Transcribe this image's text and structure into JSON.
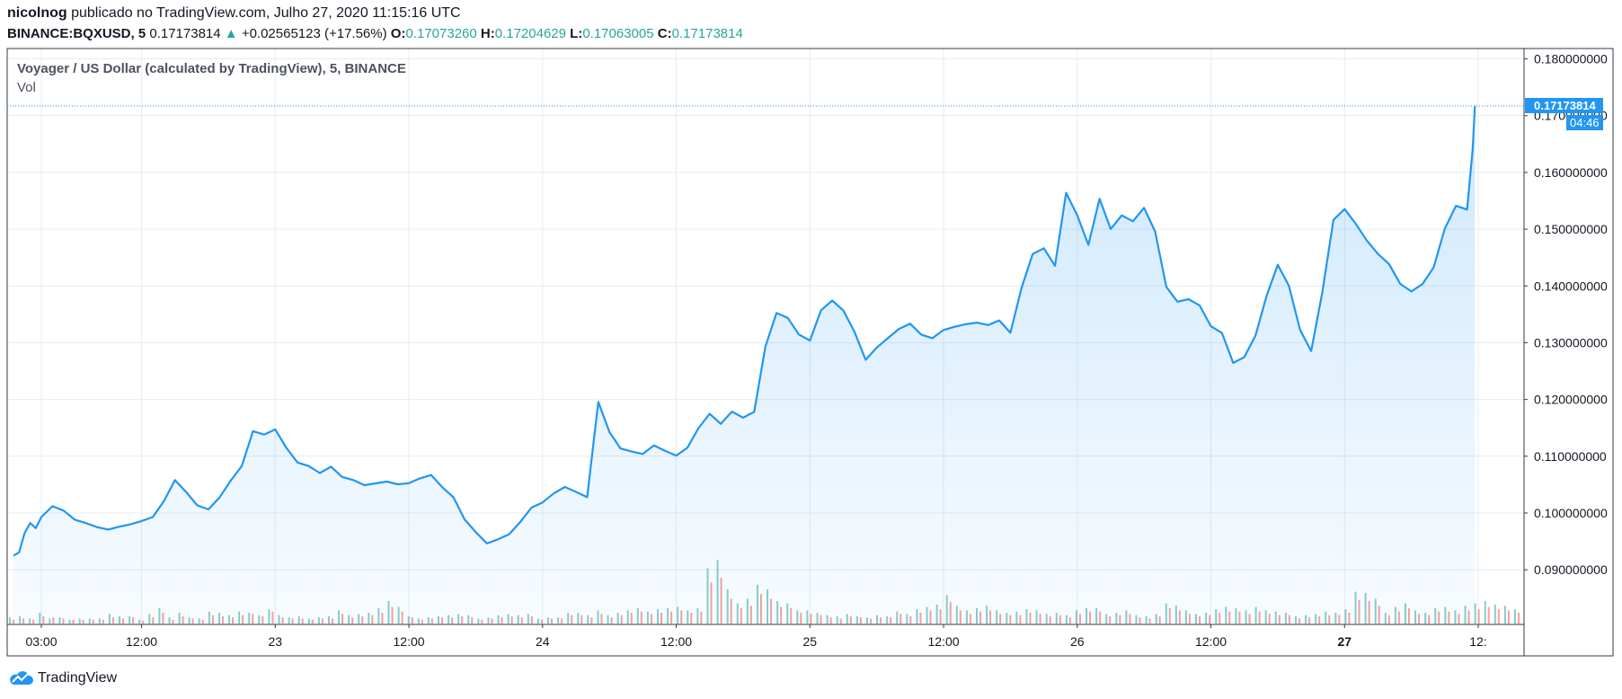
{
  "header": {
    "author": "nicolnog",
    "published_text": "publicado no TradingView.com, Julho 27, 2020 11:15:16 UTC",
    "symbol": "BINANCE:BQXUSD, 5",
    "last": "0.17173814",
    "arrow": "▲",
    "change": "+0.02565123 (+17.56%)",
    "o_label": "O:",
    "o_value": "0.17073260",
    "h_label": "H:",
    "h_value": "0.17204629",
    "l_label": "L:",
    "l_value": "0.17063005",
    "c_label": "C:",
    "c_value": "0.17173814"
  },
  "legend": {
    "title": "Voyager / US Dollar (calculated by TradingView), 5, BINANCE",
    "vol": "Vol"
  },
  "price_label": "0.17173814",
  "countdown": "04:46",
  "footer": {
    "brand": "TradingView"
  },
  "colors": {
    "line": "#2196f3",
    "up_vol": "#26a69a",
    "down_vol": "#ef5350",
    "accent": "#2196f3"
  },
  "chart_data": {
    "type": "area",
    "grid": true,
    "ylim": [
      0.0848,
      0.1808
    ],
    "y_ticks": [
      "0.090000000",
      "0.100000000",
      "0.110000000",
      "0.120000000",
      "0.130000000",
      "0.140000000",
      "0.150000000",
      "0.160000000",
      "0.170000000",
      "0.180000000"
    ],
    "y_tick_values": [
      0.09,
      0.1,
      0.11,
      0.12,
      0.13,
      0.14,
      0.15,
      0.16,
      0.17,
      0.18
    ],
    "x_ticks": [
      {
        "label": "03:00",
        "t": 3
      },
      {
        "label": "12:00",
        "t": 12
      },
      {
        "label": "23",
        "t": 24
      },
      {
        "label": "12:00",
        "t": 36
      },
      {
        "label": "24",
        "t": 48
      },
      {
        "label": "12:00",
        "t": 60
      },
      {
        "label": "25",
        "t": 72
      },
      {
        "label": "12:00",
        "t": 84
      },
      {
        "label": "26",
        "t": 96
      },
      {
        "label": "12:00",
        "t": 108
      },
      {
        "label": "27",
        "t": 120,
        "bold": true
      },
      {
        "label": "12:",
        "t": 132
      }
    ],
    "x_axis_unit": "hours since Jul 22 00:00 UTC",
    "series": [
      {
        "x": [
          0.5,
          1,
          1.5,
          2,
          2.5,
          3,
          4,
          5,
          6,
          7,
          8,
          9,
          10,
          11,
          12,
          13,
          14,
          15,
          16,
          17,
          18,
          19,
          20,
          21,
          22,
          23,
          24,
          25,
          26,
          27,
          28,
          29,
          30,
          31,
          32,
          33,
          34,
          35,
          36,
          37,
          38,
          39,
          40,
          41,
          42,
          43,
          44,
          45,
          46,
          47,
          48,
          49,
          50,
          51,
          52,
          53,
          54,
          55,
          56,
          57,
          58,
          59,
          60,
          61,
          62,
          63,
          64,
          65,
          66,
          67,
          68,
          69,
          70,
          71,
          72,
          73,
          74,
          75,
          76,
          77,
          78,
          79,
          80,
          81,
          82,
          83,
          84,
          85,
          86,
          87,
          88,
          89,
          90,
          91,
          92,
          93,
          94,
          95,
          96,
          97,
          98,
          99,
          100,
          101,
          102,
          103,
          104,
          105,
          106,
          107,
          108,
          109,
          110,
          111,
          112,
          113,
          114,
          115,
          116,
          117,
          118,
          119,
          120,
          121,
          122,
          123,
          124,
          125,
          126,
          127,
          128,
          129,
          130,
          131,
          131.5,
          131.7
        ],
        "y": [
          0.0925,
          0.0935,
          0.0965,
          0.0985,
          0.0975,
          0.0995,
          0.1015,
          0.1005,
          0.0985,
          0.098,
          0.0975,
          0.097,
          0.0972,
          0.098,
          0.0985,
          0.0995,
          0.1025,
          0.106,
          0.104,
          0.1015,
          0.101,
          0.103,
          0.106,
          0.108,
          0.114,
          0.1135,
          0.1145,
          0.111,
          0.1085,
          0.108,
          0.1075,
          0.1085,
          0.1065,
          0.106,
          0.105,
          0.1055,
          0.106,
          0.1055,
          0.105,
          0.106,
          0.1065,
          0.1045,
          0.1025,
          0.0985,
          0.0965,
          0.095,
          0.0955,
          0.0965,
          0.0985,
          0.101,
          0.102,
          0.1035,
          0.1045,
          0.1035,
          0.1025,
          0.1195,
          0.114,
          0.111,
          0.1105,
          0.11,
          0.112,
          0.111,
          0.1105,
          0.1115,
          0.115,
          0.1175,
          0.116,
          0.1175,
          0.1165,
          0.1175,
          0.129,
          0.135,
          0.134,
          0.131,
          0.13,
          0.136,
          0.1375,
          0.136,
          0.132,
          0.127,
          0.1295,
          0.131,
          0.132,
          0.133,
          0.131,
          0.1305,
          0.132,
          0.1325,
          0.133,
          0.1335,
          0.1335,
          0.134,
          0.132,
          0.14,
          0.146,
          0.147,
          0.144,
          0.156,
          0.152,
          0.147,
          0.155,
          0.15,
          0.152,
          0.151,
          0.154,
          0.15,
          0.14,
          0.1375,
          0.138,
          0.137,
          0.133,
          0.132,
          0.126,
          0.127,
          0.131,
          0.138,
          0.1435,
          0.14,
          0.132,
          0.129,
          0.139,
          0.152,
          0.154,
          0.151,
          0.148,
          0.146,
          0.144,
          0.14,
          0.139,
          0.14,
          0.143,
          0.15,
          0.154,
          0.153,
          0.164,
          0.1717
        ],
        "volume_up": [
          6,
          7,
          5,
          10,
          5,
          6,
          4,
          5,
          5,
          5,
          9,
          7,
          7,
          4,
          9,
          14,
          6,
          10,
          6,
          5,
          11,
          10,
          8,
          11,
          10,
          8,
          13,
          8,
          6,
          7,
          5,
          6,
          7,
          12,
          8,
          9,
          10,
          14,
          20,
          15,
          7,
          5,
          6,
          7,
          8,
          9,
          8,
          5,
          6,
          8,
          9,
          8,
          9,
          5,
          6,
          6,
          10,
          10,
          8,
          12,
          8,
          10,
          12,
          14,
          11,
          13,
          14,
          15,
          12,
          14,
          48,
          55,
          30,
          18,
          22,
          34,
          30,
          20,
          18,
          12,
          12,
          10,
          8,
          7,
          9,
          7,
          6,
          8,
          7,
          11,
          9,
          13,
          15,
          17,
          25,
          16,
          12,
          14,
          16,
          12,
          10,
          11,
          13,
          12,
          9,
          10,
          8,
          12,
          14,
          14,
          9,
          10,
          12,
          8,
          7,
          9,
          18,
          16,
          12,
          9,
          10,
          13,
          15,
          14,
          12,
          15,
          12,
          11,
          10,
          7,
          8,
          9,
          11,
          10,
          13,
          28,
          27,
          22,
          10,
          15,
          18,
          12,
          10,
          14,
          15,
          12,
          16,
          18,
          20,
          17,
          16,
          13
        ],
        "volume_down": [
          4,
          5,
          4,
          7,
          6,
          5,
          4,
          4,
          4,
          4,
          6,
          5,
          6,
          3,
          6,
          10,
          4,
          7,
          5,
          4,
          8,
          7,
          6,
          8,
          9,
          7,
          11,
          6,
          5,
          5,
          4,
          5,
          5,
          9,
          6,
          7,
          8,
          10,
          15,
          11,
          6,
          4,
          5,
          6,
          6,
          7,
          6,
          4,
          5,
          6,
          7,
          6,
          7,
          4,
          5,
          5,
          8,
          8,
          6,
          9,
          6,
          8,
          10,
          11,
          9,
          10,
          11,
          12,
          10,
          11,
          36,
          40,
          22,
          14,
          16,
          26,
          22,
          15,
          14,
          10,
          9,
          8,
          6,
          5,
          7,
          6,
          5,
          6,
          6,
          9,
          7,
          10,
          12,
          13,
          19,
          12,
          9,
          11,
          12,
          9,
          8,
          8,
          10,
          9,
          7,
          8,
          6,
          9,
          11,
          11,
          7,
          8,
          9,
          6,
          5,
          7,
          14,
          12,
          9,
          7,
          8,
          10,
          11,
          11,
          9,
          11,
          9,
          8,
          8,
          5,
          6,
          7,
          8,
          8,
          10,
          21,
          20,
          16,
          8,
          11,
          14,
          9,
          8,
          11,
          11,
          9,
          12,
          13,
          15,
          13,
          12,
          10
        ]
      }
    ]
  }
}
